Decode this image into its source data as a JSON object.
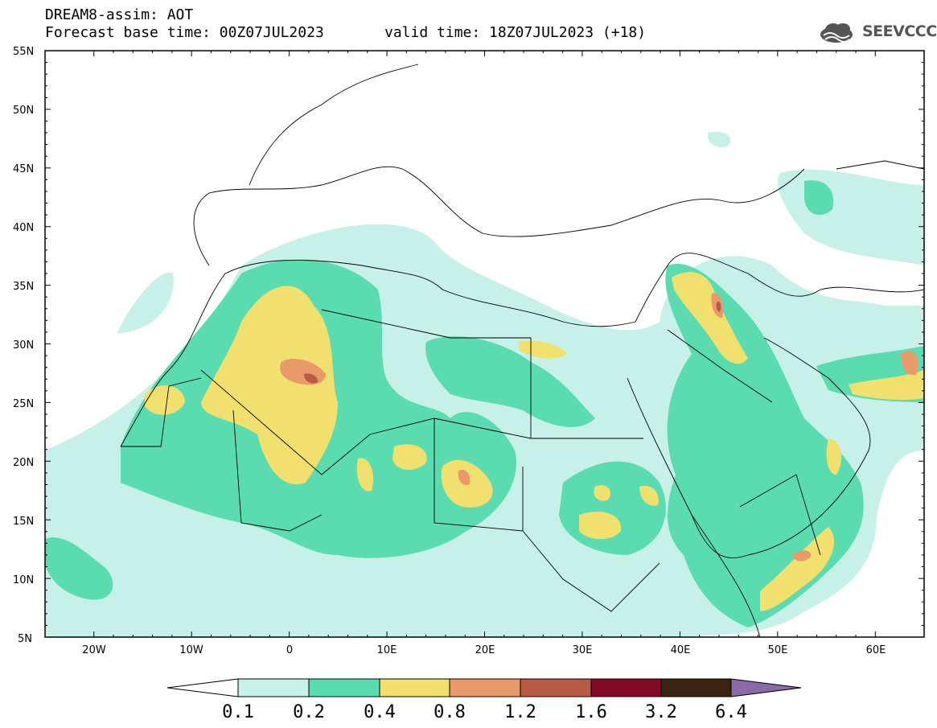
{
  "header": {
    "title": "DREAM8-assim: AOT",
    "base_time": "Forecast base time: 00Z07JUL2023",
    "valid_time": "valid time: 18Z07JUL2023 (+18)"
  },
  "logo": {
    "text": "SEEVCCC",
    "icon": "cloud-icon"
  },
  "map": {
    "lat_range": [
      5,
      55
    ],
    "lon_range": [
      -25,
      65
    ],
    "lat_labels": [
      "55N",
      "50N",
      "45N",
      "40N",
      "35N",
      "30N",
      "25N",
      "20N",
      "15N",
      "10N",
      "5N"
    ],
    "lon_labels": [
      "20W",
      "10W",
      "0",
      "10E",
      "20E",
      "30E",
      "40E",
      "50E",
      "60E"
    ],
    "colors": {
      "c1": "#c6f0e8",
      "c2": "#5bdbb0",
      "c3": "#f1e06e",
      "c4": "#ea9a6a",
      "c5": "#b85a45"
    }
  },
  "colorbar": {
    "labels": [
      "0.1",
      "0.2",
      "0.4",
      "0.8",
      "1.2",
      "1.6",
      "3.2",
      "6.4"
    ],
    "colors": [
      "#ffffff",
      "#c6f0e8",
      "#5bdbb0",
      "#f1e06e",
      "#ea9a6a",
      "#b85a45",
      "#820a28",
      "#3a2410",
      "#8a6aa8"
    ]
  }
}
